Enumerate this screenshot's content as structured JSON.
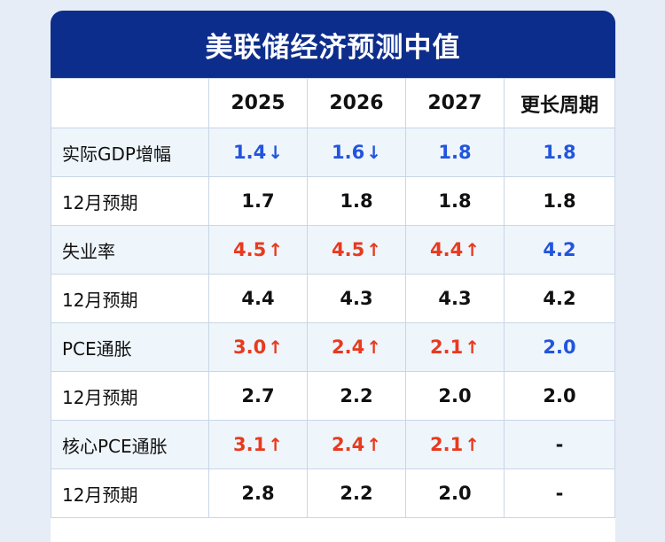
{
  "title": "美联储经济预测中值",
  "columns": [
    "2025",
    "2026",
    "2027",
    "更长周期"
  ],
  "rows": [
    {
      "label": "实际GDP增幅",
      "shaded": true,
      "cells": [
        {
          "value": "1.4",
          "color": "blue",
          "arrow": "↓"
        },
        {
          "value": "1.6",
          "color": "blue",
          "arrow": "↓"
        },
        {
          "value": "1.8",
          "color": "blue",
          "arrow": ""
        },
        {
          "value": "1.8",
          "color": "blue",
          "arrow": ""
        }
      ]
    },
    {
      "label": "12月预期",
      "shaded": false,
      "cells": [
        {
          "value": "1.7",
          "color": "",
          "arrow": ""
        },
        {
          "value": "1.8",
          "color": "",
          "arrow": ""
        },
        {
          "value": "1.8",
          "color": "",
          "arrow": ""
        },
        {
          "value": "1.8",
          "color": "",
          "arrow": ""
        }
      ]
    },
    {
      "label": "失业率",
      "shaded": true,
      "cells": [
        {
          "value": "4.5",
          "color": "red",
          "arrow": "↑"
        },
        {
          "value": "4.5",
          "color": "red",
          "arrow": "↑"
        },
        {
          "value": "4.4",
          "color": "red",
          "arrow": "↑"
        },
        {
          "value": "4.2",
          "color": "blue",
          "arrow": ""
        }
      ]
    },
    {
      "label": "12月预期",
      "shaded": false,
      "cells": [
        {
          "value": "4.4",
          "color": "",
          "arrow": ""
        },
        {
          "value": "4.3",
          "color": "",
          "arrow": ""
        },
        {
          "value": "4.3",
          "color": "",
          "arrow": ""
        },
        {
          "value": "4.2",
          "color": "",
          "arrow": ""
        }
      ]
    },
    {
      "label": "PCE通胀",
      "shaded": true,
      "cells": [
        {
          "value": "3.0",
          "color": "red",
          "arrow": "↑"
        },
        {
          "value": "2.4",
          "color": "red",
          "arrow": "↑"
        },
        {
          "value": "2.1",
          "color": "red",
          "arrow": "↑"
        },
        {
          "value": "2.0",
          "color": "blue",
          "arrow": ""
        }
      ]
    },
    {
      "label": "12月预期",
      "shaded": false,
      "cells": [
        {
          "value": "2.7",
          "color": "",
          "arrow": ""
        },
        {
          "value": "2.2",
          "color": "",
          "arrow": ""
        },
        {
          "value": "2.0",
          "color": "",
          "arrow": ""
        },
        {
          "value": "2.0",
          "color": "",
          "arrow": ""
        }
      ]
    },
    {
      "label": "核心PCE通胀",
      "shaded": true,
      "cells": [
        {
          "value": "3.1",
          "color": "red",
          "arrow": "↑"
        },
        {
          "value": "2.4",
          "color": "red",
          "arrow": "↑"
        },
        {
          "value": "2.1",
          "color": "red",
          "arrow": "↑"
        },
        {
          "value": "-",
          "color": "",
          "arrow": ""
        }
      ]
    },
    {
      "label": "12月预期",
      "shaded": false,
      "cells": [
        {
          "value": "2.8",
          "color": "",
          "arrow": ""
        },
        {
          "value": "2.2",
          "color": "",
          "arrow": ""
        },
        {
          "value": "2.0",
          "color": "",
          "arrow": ""
        },
        {
          "value": "-",
          "color": "",
          "arrow": ""
        }
      ]
    }
  ],
  "colors": {
    "title_bg": "#0d2d8c",
    "up": "#e83a1e",
    "down": "#2255dd",
    "shaded_row": "#eef5fb",
    "border": "#c9d6e6"
  }
}
